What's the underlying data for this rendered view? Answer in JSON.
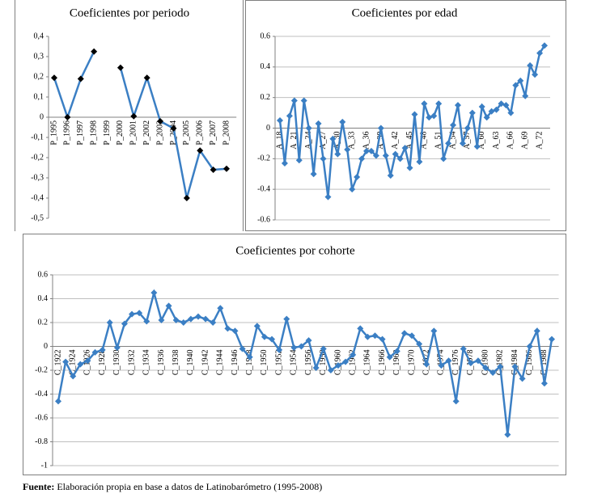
{
  "chart_data": [
    {
      "type": "line",
      "title": "Coeficientes por periodo",
      "categories": [
        "P_1995",
        "P_1996",
        "P_1997",
        "P_1998",
        "P_1999",
        "P_2000",
        "P_2001",
        "P_2002",
        "P_2003",
        "P_2004",
        "P_2005",
        "P_2006",
        "P_2007",
        "P_2008"
      ],
      "series": [
        {
          "color": "#3b7fc4",
          "marker_color": "#000000",
          "values": [
            0.195,
            0,
            0.19,
            0.325,
            null,
            0.245,
            0.005,
            0.195,
            -0.02,
            -0.055,
            -0.4,
            -0.165,
            -0.26,
            -0.255
          ]
        }
      ],
      "ylim": [
        -0.5,
        0.4
      ],
      "yticks": [
        {
          "value": 0.4,
          "label": "0,4"
        },
        {
          "value": 0.3,
          "label": "0,3"
        },
        {
          "value": 0.2,
          "label": "0,2"
        },
        {
          "value": 0.1,
          "label": "0,1"
        },
        0,
        {
          "value": -0.1,
          "label": "-0,1"
        },
        {
          "value": -0.2,
          "label": "-0,2"
        },
        {
          "value": -0.3,
          "label": "-0,3"
        },
        {
          "value": -0.4,
          "label": "-0,4"
        },
        {
          "value": -0.5,
          "label": "-0,5"
        }
      ],
      "grid": false
    },
    {
      "type": "line",
      "title": "Coeficientes por edad",
      "categories": [
        "A_18",
        null,
        null,
        "A_21",
        null,
        null,
        "A_24",
        null,
        null,
        "A_27",
        null,
        null,
        "A_30",
        null,
        null,
        "A_33",
        null,
        null,
        "A_36",
        null,
        null,
        "A_39",
        null,
        null,
        "A_42",
        null,
        null,
        "A_45",
        null,
        null,
        "A_48",
        null,
        null,
        "A_51",
        null,
        null,
        "A_54",
        null,
        null,
        "A_57",
        null,
        null,
        "A_60",
        null,
        null,
        "A_63",
        null,
        null,
        "A_66",
        null,
        null,
        "A_69",
        null,
        null,
        "A_72",
        null
      ],
      "series": [
        {
          "color": "#3b7fc4",
          "marker_color": "#3b7fc4",
          "values": [
            0.05,
            -0.23,
            0.08,
            0.18,
            -0.21,
            0.18,
            0.0,
            -0.3,
            0.03,
            -0.2,
            -0.45,
            -0.07,
            -0.17,
            0.04,
            -0.14,
            -0.4,
            -0.32,
            -0.2,
            -0.15,
            -0.15,
            -0.18,
            0.0,
            -0.18,
            -0.31,
            -0.17,
            -0.2,
            -0.13,
            -0.26,
            0.09,
            -0.22,
            0.16,
            0.07,
            0.08,
            0.16,
            -0.2,
            -0.1,
            0.02,
            0.15,
            -0.1,
            0.0,
            0.1,
            -0.12,
            0.14,
            0.07,
            0.11,
            0.12,
            0.16,
            0.15,
            0.1,
            0.28,
            0.31,
            0.21,
            0.41,
            0.35,
            0.49,
            0.54
          ]
        }
      ],
      "ylim": [
        -0.6,
        0.6
      ],
      "yticks": [
        0.6,
        0.4,
        0.2,
        0,
        -0.2,
        -0.4,
        -0.6
      ],
      "grid": true
    },
    {
      "type": "line",
      "title": "Coeficientes por cohorte",
      "categories": [
        "C_1922",
        null,
        "C_1924",
        null,
        "C_1926",
        null,
        "C_1928",
        null,
        "C_1930",
        null,
        "C_1932",
        null,
        "C_1934",
        null,
        "C_1936",
        null,
        "C_1938",
        null,
        "C_1940",
        null,
        "C_1942",
        null,
        "C_1944",
        null,
        "C_1946",
        null,
        "C_1948",
        null,
        "C_1950",
        null,
        "C_1952",
        null,
        "C_1954",
        null,
        "C_1956",
        null,
        "C_1958",
        null,
        "C_1960",
        null,
        "C_1962",
        null,
        "C_1964",
        null,
        "C_1966",
        null,
        "C_1968",
        null,
        "C_1970",
        null,
        "C_1972",
        null,
        "C_1974",
        null,
        "C_1976",
        null,
        "C_1978",
        null,
        "C_1980",
        null,
        "C_1982",
        null,
        "C_1984",
        null,
        "C_1986",
        null,
        "C_1988",
        null
      ],
      "series": [
        {
          "color": "#3b7fc4",
          "marker_color": "#3b7fc4",
          "values": [
            -0.46,
            -0.13,
            -0.25,
            -0.15,
            -0.12,
            -0.05,
            -0.03,
            0.2,
            -0.01,
            0.19,
            0.27,
            0.28,
            0.21,
            0.45,
            0.22,
            0.34,
            0.22,
            0.2,
            0.23,
            0.25,
            0.23,
            0.2,
            0.32,
            0.15,
            0.13,
            -0.02,
            -0.09,
            0.17,
            0.08,
            0.06,
            -0.03,
            0.23,
            -0.01,
            0.0,
            0.05,
            -0.18,
            -0.02,
            -0.2,
            -0.16,
            -0.13,
            -0.07,
            0.15,
            0.08,
            0.09,
            0.06,
            -0.09,
            -0.04,
            0.11,
            0.09,
            0.02,
            -0.15,
            0.13,
            -0.16,
            -0.12,
            -0.46,
            -0.02,
            -0.14,
            -0.12,
            -0.18,
            -0.22,
            -0.17,
            -0.74,
            -0.17,
            -0.27,
            0.0,
            0.13,
            -0.31,
            0.06
          ]
        }
      ],
      "ylim": [
        -1,
        0.6
      ],
      "yticks": [
        0.6,
        0.4,
        0.2,
        0,
        -0.2,
        -0.4,
        -0.6,
        -0.8,
        -1
      ],
      "grid": true
    }
  ],
  "footer": {
    "label": "Fuente:",
    "text": "Elaboración propia en base a datos de Latinobarómetro (1995-2008)"
  }
}
